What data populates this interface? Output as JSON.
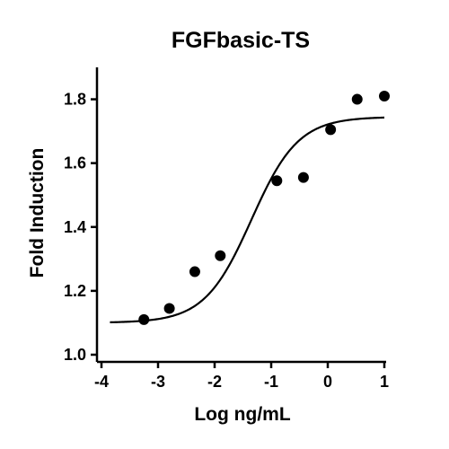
{
  "chart_data": {
    "type": "scatter",
    "title": "FGFbasic-TS",
    "xlabel": "Log ng/mL",
    "ylabel": "Fold Induction",
    "xlim": [
      -4,
      1
    ],
    "ylim": [
      1.0,
      1.9
    ],
    "xticks": [
      -4,
      -3,
      -2,
      -1,
      0,
      1
    ],
    "xtick_labels": [
      "-4",
      "-3",
      "-2",
      "-1",
      "0",
      "1"
    ],
    "yticks": [
      1.0,
      1.2,
      1.4,
      1.6,
      1.8
    ],
    "ytick_labels": [
      "1.0",
      "1.2",
      "1.4",
      "1.6",
      "1.8"
    ],
    "grid": false,
    "series": [
      {
        "points": [
          {
            "x": -3.25,
            "y": 1.11
          },
          {
            "x": -2.8,
            "y": 1.145
          },
          {
            "x": -2.35,
            "y": 1.26
          },
          {
            "x": -1.9,
            "y": 1.31
          },
          {
            "x": -0.9,
            "y": 1.545
          },
          {
            "x": -0.43,
            "y": 1.555
          },
          {
            "x": 0.05,
            "y": 1.705
          },
          {
            "x": 0.52,
            "y": 1.8
          },
          {
            "x": 1.0,
            "y": 1.81
          }
        ]
      }
    ],
    "fit_curve": {
      "model": "4PL",
      "bottom": 1.1,
      "top": 1.745,
      "log_ec50": -1.35,
      "hill_slope": 1.05,
      "x_range": [
        -3.85,
        1.0
      ]
    },
    "colors": {
      "marks": "#000000",
      "background": "#ffffff"
    }
  }
}
